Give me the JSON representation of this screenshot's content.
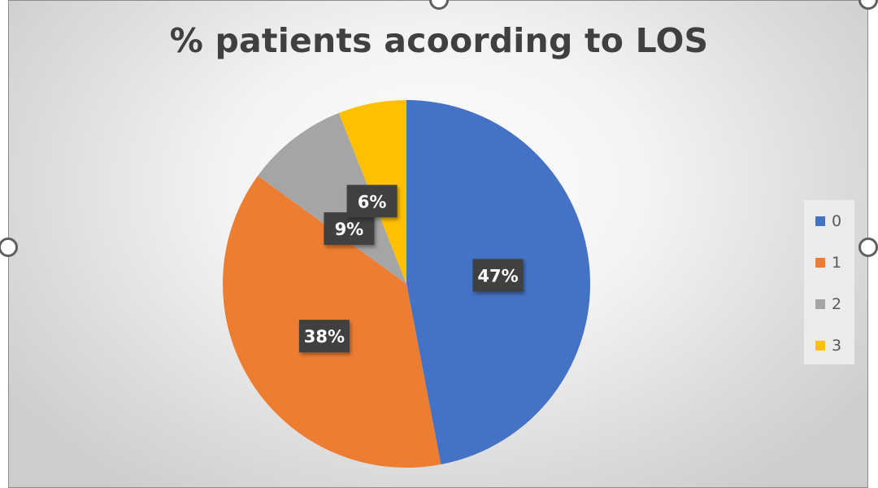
{
  "chart_data": {
    "type": "pie",
    "title": "% patients acoording to LOS",
    "categories": [
      "0",
      "1",
      "2",
      "3"
    ],
    "values": [
      47,
      38,
      9,
      6
    ],
    "data_labels": [
      "47%",
      "38%",
      "9%",
      "6%"
    ],
    "colors": [
      "#4472C4",
      "#ED7D31",
      "#A5A5A5",
      "#FFC000"
    ],
    "legend_position": "right"
  }
}
